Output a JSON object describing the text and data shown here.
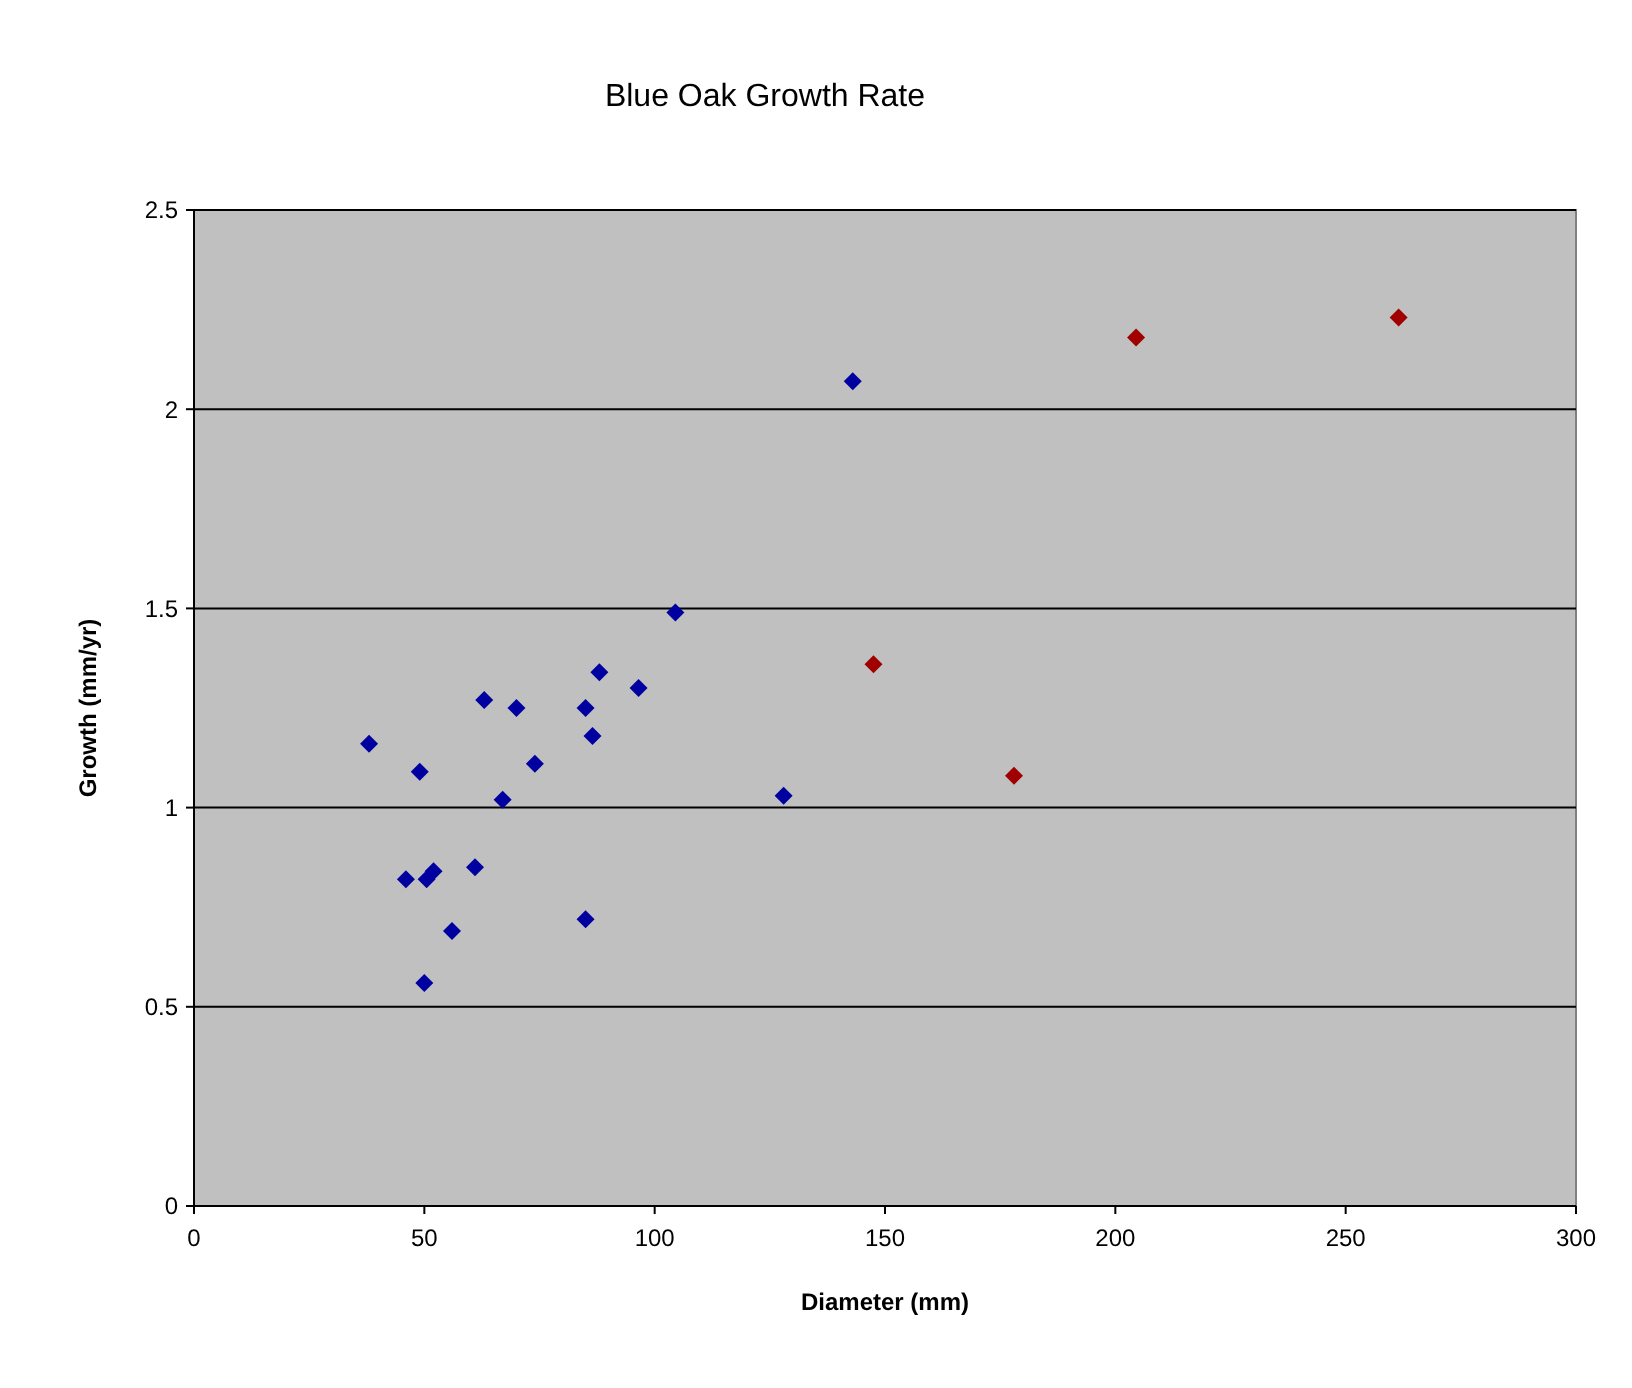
{
  "chart_data": {
    "type": "scatter",
    "title": "Blue Oak Growth Rate",
    "xlabel": "Diameter (mm)",
    "ylabel": "Growth (mm/yr)",
    "xlim": [
      0,
      300
    ],
    "xticks": [
      0,
      50,
      100,
      150,
      200,
      250,
      300
    ],
    "ylim": [
      0,
      2.5
    ],
    "yticks": [
      0,
      0.5,
      1,
      1.5,
      2,
      2.5
    ],
    "grid": "y",
    "marker": "diamond",
    "series": [
      {
        "color": "#0000a0",
        "x": [
          38,
          49,
          46,
          50.5,
          52,
          50,
          56,
          61,
          63,
          67,
          70,
          74,
          85,
          85,
          86.5,
          88,
          96.5,
          104.5,
          128,
          143
        ],
        "values": [
          1.16,
          1.09,
          0.82,
          0.82,
          0.84,
          0.56,
          0.69,
          0.85,
          1.27,
          1.02,
          1.25,
          1.11,
          0.72,
          1.25,
          1.18,
          1.34,
          1.3,
          1.49,
          1.03,
          2.07
        ]
      },
      {
        "color": "#a00000",
        "x": [
          147.5,
          178,
          204.5,
          261.5
        ],
        "values": [
          1.36,
          1.08,
          2.18,
          2.23
        ]
      }
    ]
  }
}
